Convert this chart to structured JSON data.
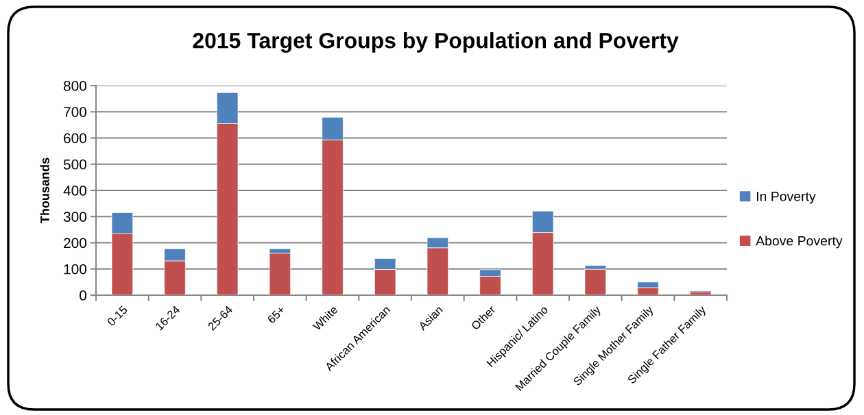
{
  "chart_data": {
    "type": "bar",
    "title": "2015 Target Groups by Population and Poverty",
    "ylabel": "Thousands",
    "categories": [
      "0-15",
      "16-24",
      "25-64",
      "65+",
      "White",
      "African American",
      "Asian",
      "Other",
      "Hispanic/ Latino",
      "Married Couple Family",
      "Single Mother Family",
      "Single Father Family"
    ],
    "series": [
      {
        "name": "Above Poverty",
        "color": "#c0504d",
        "values": [
          235,
          131,
          655,
          160,
          593,
          98,
          181,
          72,
          239,
          99,
          29,
          13
        ]
      },
      {
        "name": "In Poverty",
        "color": "#4f81bd",
        "values": [
          80,
          46,
          118,
          17,
          86,
          42,
          38,
          25,
          82,
          14,
          21,
          4
        ]
      }
    ],
    "stacked": true,
    "ylim": [
      0,
      800
    ],
    "yticks": [
      0,
      100,
      200,
      300,
      400,
      500,
      600,
      700,
      800
    ],
    "grid": "y",
    "legend": "right"
  }
}
